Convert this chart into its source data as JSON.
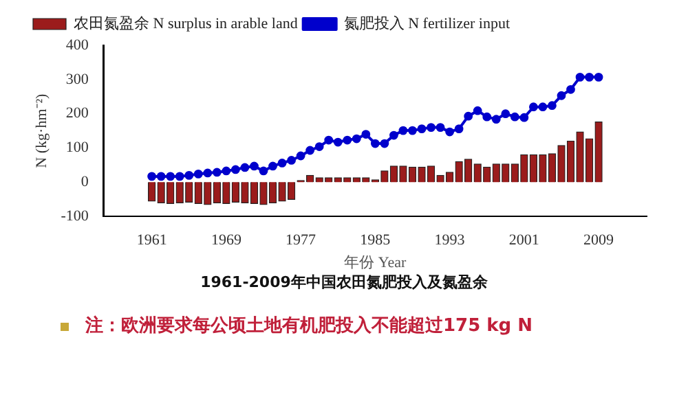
{
  "chart_data": {
    "type": "bar",
    "title": "1961-2009年中国农田氮肥投入及氮盈余",
    "xlabel": "年份 Year",
    "ylabel": "N (kg·hm⁻²)",
    "x": [
      1961,
      1962,
      1963,
      1964,
      1965,
      1966,
      1967,
      1968,
      1969,
      1970,
      1971,
      1972,
      1973,
      1974,
      1975,
      1976,
      1977,
      1978,
      1979,
      1980,
      1981,
      1982,
      1983,
      1984,
      1985,
      1986,
      1987,
      1988,
      1989,
      1990,
      1991,
      1992,
      1993,
      1994,
      1995,
      1996,
      1997,
      1998,
      1999,
      2000,
      2001,
      2002,
      2003,
      2004,
      2005,
      2006,
      2007,
      2008,
      2009
    ],
    "series": [
      {
        "name": "农田氮盈余 N surplus in arable land",
        "color": "#9b1c1c",
        "values": [
          -55,
          -60,
          -62,
          -60,
          -58,
          -62,
          -65,
          -60,
          -62,
          -58,
          -60,
          -62,
          -65,
          -60,
          -55,
          -50,
          5,
          20,
          13,
          13,
          13,
          13,
          13,
          13,
          7,
          33,
          47,
          47,
          44,
          44,
          47,
          20,
          29,
          60,
          67,
          53,
          44,
          53,
          53,
          53,
          80,
          80,
          80,
          83,
          107,
          120,
          147,
          127,
          176
        ]
      },
      {
        "name": "氮肥投入 N fertilizer input",
        "type": "line",
        "color": "#0000cc",
        "values": [
          17,
          17,
          17,
          17,
          20,
          24,
          27,
          29,
          33,
          37,
          43,
          47,
          33,
          47,
          56,
          64,
          77,
          93,
          104,
          123,
          117,
          123,
          127,
          140,
          113,
          113,
          137,
          151,
          151,
          156,
          160,
          160,
          147,
          156,
          193,
          209,
          191,
          184,
          200,
          191,
          189,
          220,
          220,
          224,
          253,
          271,
          307,
          307,
          307
        ]
      }
    ],
    "xlim": [
      1960,
      2010
    ],
    "xticks": [
      1961,
      1969,
      1977,
      1985,
      1993,
      2001,
      2009
    ],
    "ylim": [
      -100,
      400
    ],
    "yticks": [
      -100,
      0,
      100,
      200,
      300,
      400
    ],
    "marker": "circle",
    "grid": false,
    "legend": "top left",
    "annotations": [
      "注：欧洲要求每公顷土地有机肥投入不能超过175 kg N"
    ]
  }
}
